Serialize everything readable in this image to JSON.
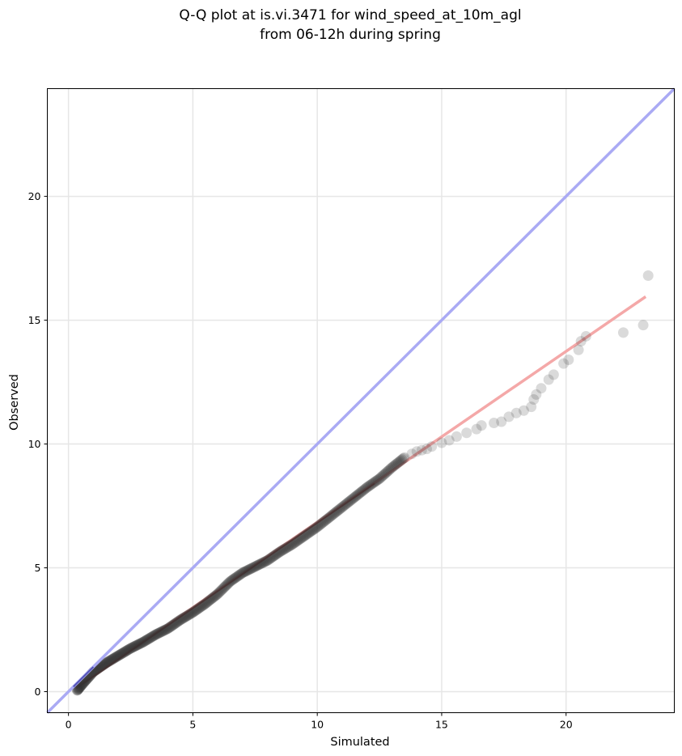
{
  "chart_data": {
    "type": "scatter",
    "title": "Q-Q plot at is.vi.3471 for wind_speed_at_10m_agl",
    "subtitle": "from 06-12h during spring",
    "xlabel": "Simulated",
    "ylabel": "Observed",
    "xlim": [
      -0.85,
      24.35
    ],
    "ylim": [
      -0.85,
      24.35
    ],
    "x_ticks": [
      0,
      5,
      10,
      15,
      20
    ],
    "y_ticks": [
      0,
      5,
      10,
      15,
      20
    ],
    "grid": true,
    "colors": {
      "points": "#333333",
      "identity_line": "#aaaaf4",
      "fit_line": "#f4a8a8",
      "fit_line_dense": "#8b0000",
      "grid": "#e6e6e6"
    },
    "reference_line": {
      "name": "1:1 line",
      "slope": 1,
      "intercept": 0
    },
    "fit_line": {
      "x": [
        0.3,
        23.2
      ],
      "y": [
        0.15,
        15.95
      ]
    },
    "quantile_curve": {
      "x": [
        0.35,
        0.6,
        1.0,
        1.5,
        2.0,
        2.5,
        3.0,
        3.5,
        4.0,
        4.5,
        5.0,
        5.5,
        6.0,
        6.5,
        7.0,
        7.5,
        8.0,
        8.5,
        9.0,
        9.5,
        10.0,
        10.5,
        11.0,
        11.5,
        12.0,
        12.5,
        13.0,
        13.5
      ],
      "y": [
        0.05,
        0.35,
        0.8,
        1.15,
        1.45,
        1.75,
        2.0,
        2.3,
        2.55,
        2.9,
        3.2,
        3.55,
        3.95,
        4.45,
        4.8,
        5.05,
        5.3,
        5.65,
        5.95,
        6.3,
        6.65,
        7.05,
        7.45,
        7.85,
        8.25,
        8.6,
        9.05,
        9.45
      ],
      "count": 340
    },
    "tail_points": [
      {
        "x": 13.8,
        "y": 9.6
      },
      {
        "x": 14.0,
        "y": 9.7
      },
      {
        "x": 14.2,
        "y": 9.75
      },
      {
        "x": 14.4,
        "y": 9.8
      },
      {
        "x": 14.6,
        "y": 9.9
      },
      {
        "x": 15.0,
        "y": 10.05
      },
      {
        "x": 15.3,
        "y": 10.15
      },
      {
        "x": 15.6,
        "y": 10.3
      },
      {
        "x": 16.0,
        "y": 10.45
      },
      {
        "x": 16.4,
        "y": 10.6
      },
      {
        "x": 16.6,
        "y": 10.75
      },
      {
        "x": 17.1,
        "y": 10.85
      },
      {
        "x": 17.4,
        "y": 10.9
      },
      {
        "x": 17.7,
        "y": 11.1
      },
      {
        "x": 18.0,
        "y": 11.25
      },
      {
        "x": 18.3,
        "y": 11.35
      },
      {
        "x": 18.6,
        "y": 11.5
      },
      {
        "x": 18.7,
        "y": 11.8
      },
      {
        "x": 18.8,
        "y": 12.0
      },
      {
        "x": 19.0,
        "y": 12.25
      },
      {
        "x": 19.3,
        "y": 12.6
      },
      {
        "x": 19.5,
        "y": 12.8
      },
      {
        "x": 19.9,
        "y": 13.25
      },
      {
        "x": 20.1,
        "y": 13.4
      },
      {
        "x": 20.5,
        "y": 13.8
      },
      {
        "x": 20.6,
        "y": 14.15
      },
      {
        "x": 20.8,
        "y": 14.35
      },
      {
        "x": 22.3,
        "y": 14.5
      },
      {
        "x": 23.1,
        "y": 14.8
      },
      {
        "x": 23.3,
        "y": 16.8
      }
    ]
  }
}
